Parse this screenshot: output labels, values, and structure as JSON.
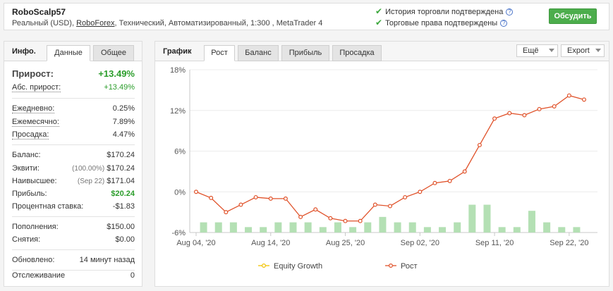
{
  "header": {
    "account_name": "RoboScalp57",
    "sub_prefix": "Реальный (USD), ",
    "broker": "RoboForex",
    "sub_suffix": ", Технический, Автоматизированный, 1:300 , MetaTrader 4",
    "verify_history": "История торговли подтверждена",
    "verify_rights": "Торговые права подтверждены",
    "discuss_button": "Обсудить"
  },
  "info": {
    "title": "Инфо.",
    "tab_data": "Данные",
    "tab_general": "Общее",
    "gain_label": "Прирост:",
    "gain_value": "+13.49%",
    "abs_gain_label": "Абс. прирост:",
    "abs_gain_value": "+13.49%",
    "daily_label": "Ежедневно:",
    "daily_value": "0.25%",
    "monthly_label": "Ежемесячно:",
    "monthly_value": "7.89%",
    "drawdown_label": "Просадка:",
    "drawdown_value": "4.47%",
    "balance_label": "Баланс:",
    "balance_value": "$170.24",
    "equity_label": "Эквити:",
    "equity_pre": "(100.00%)",
    "equity_value": "$170.24",
    "highest_label": "Наивысшее:",
    "highest_pre": "(Sep 22)",
    "highest_value": "$171.04",
    "profit_label": "Прибыль:",
    "profit_value": "$20.24",
    "interest_label": "Процентная ставка:",
    "interest_value": "-$1.83",
    "deposits_label": "Пополнения:",
    "deposits_value": "$150.00",
    "withdrawals_label": "Снятия:",
    "withdrawals_value": "$0.00",
    "updated_label": "Обновлено:",
    "updated_value": "14 минут назад",
    "tracking_label": "Отслеживание",
    "tracking_value": "0"
  },
  "chart_panel": {
    "title": "График",
    "tabs": [
      "Рост",
      "Баланс",
      "Прибыль",
      "Просадка"
    ],
    "more_label": "Ещё",
    "export_label": "Export"
  },
  "colors": {
    "growth_line": "#e0522a",
    "equity_legend": "#f2c200",
    "bars": "#b4e0b4",
    "green": "#2b9d2b",
    "button": "#4cad4c"
  },
  "chart_data": {
    "type": "line",
    "y_ticks": [
      "18%",
      "12%",
      "6%",
      "0%",
      "-6%"
    ],
    "ylim": [
      -6,
      18
    ],
    "x_ticks": [
      "Aug 04, '20",
      "Aug 14, '20",
      "Aug 25, '20",
      "Sep 02, '20",
      "Sep 11, '20",
      "Sep 22, '20"
    ],
    "legend": [
      "Equity Growth",
      "Рост"
    ],
    "growth": [
      0.0,
      -0.9,
      -3.0,
      -1.9,
      -0.8,
      -1.0,
      -1.0,
      -3.7,
      -2.6,
      -3.9,
      -4.3,
      -4.3,
      -1.9,
      -2.1,
      -0.8,
      0.0,
      1.3,
      1.6,
      3.0,
      6.9,
      10.8,
      11.6,
      11.3,
      12.2,
      12.6,
      14.2,
      13.6
    ],
    "bars": [
      -4.5,
      -4.5,
      -4.5,
      -5.2,
      -5.2,
      -4.5,
      -4.5,
      -4.5,
      -5.2,
      -4.5,
      -5.2,
      -4.5,
      -3.7,
      -4.5,
      -4.5,
      -5.2,
      -5.2,
      -4.5,
      -1.9,
      -1.9,
      -5.2,
      -5.2,
      -2.8,
      -4.5,
      -5.2,
      -5.2
    ]
  }
}
